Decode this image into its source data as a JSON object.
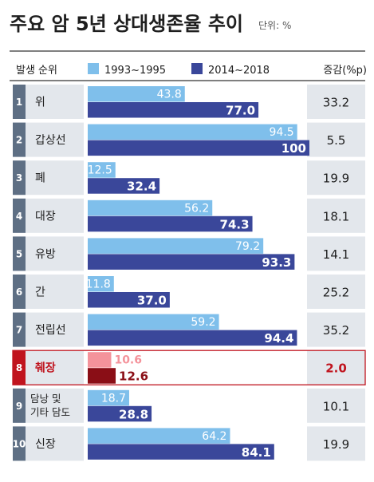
{
  "chart_data": {
    "type": "bar",
    "title": "주요 암 5년 상대생존율 추이",
    "unit_label": "단위: %",
    "rank_header": "발생 순위",
    "change_header": "증감(%p)",
    "legend": [
      {
        "name": "1993~1995",
        "color": "#7fbfeb"
      },
      {
        "name": "2014~2018",
        "color": "#3a479a"
      }
    ],
    "ranks": [
      "1",
      "2",
      "3",
      "4",
      "5",
      "6",
      "7",
      "8",
      "9",
      "10"
    ],
    "categories": [
      "위",
      "갑상선",
      "폐",
      "대장",
      "유방",
      "간",
      "전립선",
      "췌장",
      "담낭 및\n기타 담도",
      "신장"
    ],
    "series": [
      {
        "name": "1993~1995",
        "values": [
          43.8,
          94.5,
          12.5,
          56.2,
          79.2,
          11.8,
          59.2,
          10.6,
          18.7,
          64.2
        ]
      },
      {
        "name": "2014~2018",
        "values": [
          77.0,
          100,
          32.4,
          74.3,
          93.3,
          37.0,
          94.4,
          12.6,
          28.8,
          84.1
        ]
      }
    ],
    "value_labels": [
      [
        "43.8",
        "77.0"
      ],
      [
        "94.5",
        "100"
      ],
      [
        "12.5",
        "32.4"
      ],
      [
        "56.2",
        "74.3"
      ],
      [
        "79.2",
        "93.3"
      ],
      [
        "11.8",
        "37.0"
      ],
      [
        "59.2",
        "94.4"
      ],
      [
        "10.6",
        "12.6"
      ],
      [
        "18.7",
        "28.8"
      ],
      [
        "64.2",
        "84.1"
      ]
    ],
    "change": [
      "33.2",
      "5.5",
      "19.9",
      "18.1",
      "14.1",
      "25.2",
      "35.2",
      "2.0",
      "10.1",
      "19.9"
    ],
    "highlight_index": 7,
    "highlight_colors": {
      "series1": "#f4939b",
      "series2": "#8a0e16",
      "text": "#c0141e",
      "border": "#c0141e"
    },
    "xlim": [
      0,
      100
    ]
  }
}
